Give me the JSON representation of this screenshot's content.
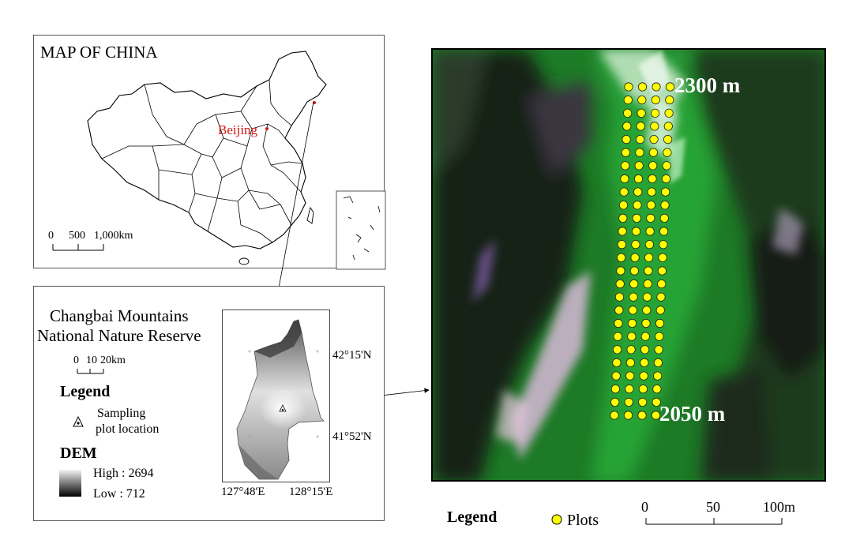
{
  "china_map": {
    "title": "MAP OF CHINA",
    "capital_label": "Beijing",
    "scale": {
      "ticks": [
        "0",
        "500",
        "1,000"
      ],
      "unit": "km"
    }
  },
  "reserve_map": {
    "title_line1": "Changbai Mountains",
    "title_line2": "National Nature Reserve",
    "scale": {
      "ticks": [
        "0",
        "10",
        "20"
      ],
      "unit": "km"
    },
    "legend_heading": "Legend",
    "sampling_label_line1": "Sampling",
    "sampling_label_line2": "plot location",
    "dem_heading": "DEM",
    "dem_high": "High : 2694",
    "dem_low": "Low : 712",
    "lat_labels": [
      "42°15'N",
      "41°52'N"
    ],
    "lon_labels": [
      "127°48'E",
      "128°15'E"
    ]
  },
  "satellite_view": {
    "upper_elevation": "2300 m",
    "lower_elevation": "2050 m",
    "legend_heading": "Legend",
    "plots_label": "Plots",
    "scale": {
      "ticks": [
        "0",
        "50",
        "100m"
      ]
    },
    "colors": {
      "plot_fill": "#ffff00",
      "vegetation": "#1f8f2a",
      "shadow": "#1a1f1a"
    }
  }
}
